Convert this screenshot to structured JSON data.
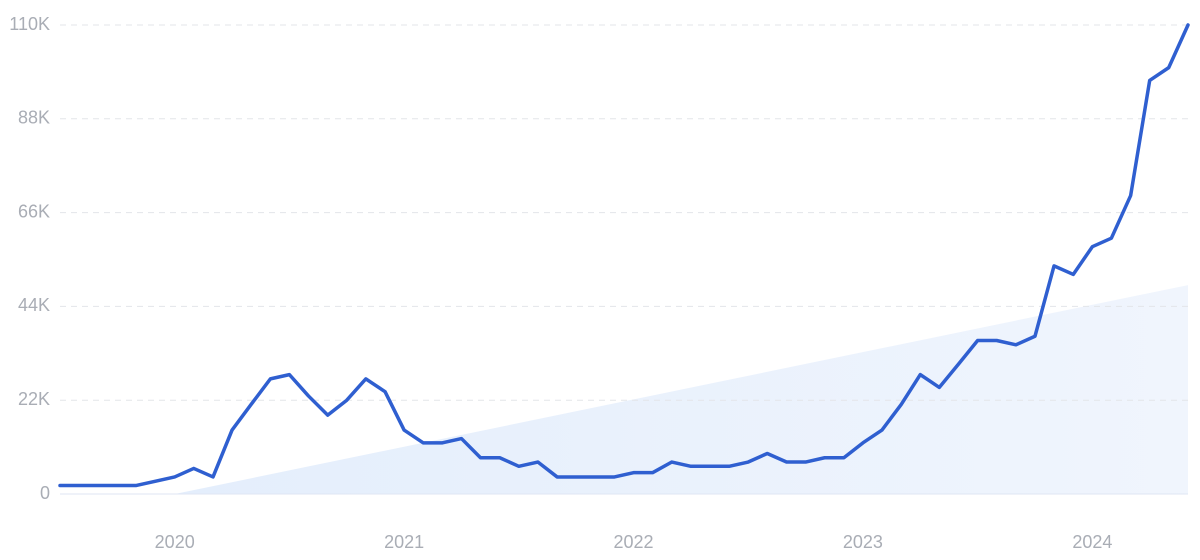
{
  "chart_data": {
    "type": "line",
    "x": [
      2019.5,
      2019.583,
      2019.667,
      2019.75,
      2019.833,
      2019.917,
      2020,
      2020.083,
      2020.167,
      2020.25,
      2020.333,
      2020.417,
      2020.5,
      2020.583,
      2020.667,
      2020.75,
      2020.833,
      2020.917,
      2021,
      2021.083,
      2021.167,
      2021.25,
      2021.333,
      2021.417,
      2021.5,
      2021.583,
      2021.667,
      2021.75,
      2021.833,
      2021.917,
      2022,
      2022.083,
      2022.167,
      2022.25,
      2022.333,
      2022.417,
      2022.5,
      2022.583,
      2022.667,
      2022.75,
      2022.833,
      2022.917,
      2023,
      2023.083,
      2023.167,
      2023.25,
      2023.333,
      2023.417,
      2023.5,
      2023.583,
      2023.667,
      2023.75,
      2023.833,
      2023.917,
      2024,
      2024.083,
      2024.167,
      2024.25,
      2024.333,
      2024.417
    ],
    "series": [
      {
        "color": "#2f5fd0",
        "values": [
          2000,
          2000,
          2000,
          2000,
          2000,
          3000,
          4000,
          6000,
          4000,
          15000,
          21000,
          27000,
          28000,
          23000,
          18500,
          22000,
          27000,
          24000,
          15000,
          12000,
          12000,
          13000,
          8500,
          8500,
          6500,
          7500,
          4000,
          4000,
          4000,
          4000,
          5000,
          5000,
          7500,
          6500,
          6500,
          6500,
          7500,
          9500,
          7500,
          7500,
          8500,
          8500,
          12000,
          15000,
          21000,
          28000,
          25000,
          30500,
          36000,
          36000,
          35000,
          37000,
          53500,
          51500,
          58000,
          60000,
          70000,
          97000,
          100000,
          110000
        ]
      }
    ],
    "trend": {
      "x": [
        2020,
        2024.417
      ],
      "values": [
        0,
        49000
      ],
      "color": "#dbe8fb"
    },
    "xlim": [
      2019.5,
      2024.417
    ],
    "xticks": [
      2020,
      2021,
      2022,
      2023,
      2024
    ],
    "ylim": [
      0,
      110000
    ],
    "yticks": [
      0,
      {
        "value": 22000,
        "label": "22K"
      },
      {
        "value": 44000,
        "label": "44K"
      },
      {
        "value": 66000,
        "label": "66K"
      },
      {
        "value": 88000,
        "label": "88K"
      },
      {
        "value": 110000,
        "label": "110K"
      }
    ],
    "grid": true
  }
}
